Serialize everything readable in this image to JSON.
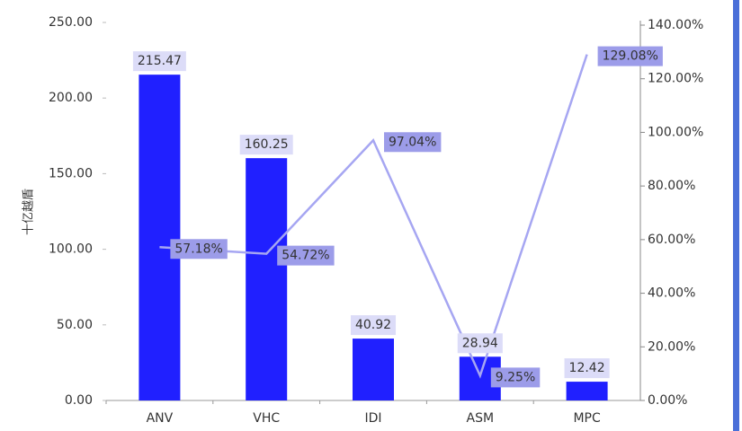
{
  "chart_data": {
    "type": "bar-line",
    "y_label": "十亿越盾",
    "categories": [
      "ANV",
      "VHC",
      "IDI",
      "ASM",
      "MPC"
    ],
    "series": [
      {
        "type": "bar",
        "color": "#2020ff",
        "values": [
          215.47,
          160.25,
          40.92,
          28.94,
          12.42
        ]
      },
      {
        "type": "line",
        "color": "#a6a6f2",
        "axis": "y2",
        "values": [
          57.18,
          54.72,
          97.04,
          9.25,
          129.08
        ],
        "value_labels": [
          "57.18%",
          "54.72%",
          "97.04%",
          "9.25%",
          "129.08%"
        ]
      }
    ],
    "ylim": [
      0,
      250
    ],
    "yticks": [
      {
        "value": 0,
        "label": "0.00"
      },
      {
        "value": 50,
        "label": "50.00"
      },
      {
        "value": 100,
        "label": "100.00"
      },
      {
        "value": 150,
        "label": "150.00"
      },
      {
        "value": 200,
        "label": "200.00"
      },
      {
        "value": 250,
        "label": "250.00"
      }
    ],
    "y2lim": [
      0,
      140
    ],
    "y2ticks": [
      {
        "value": 0,
        "label": "0.00%"
      },
      {
        "value": 20,
        "label": "20.00%"
      },
      {
        "value": 40,
        "label": "40.00%"
      },
      {
        "value": 60,
        "label": "60.00%"
      },
      {
        "value": 80,
        "label": "80.00%"
      },
      {
        "value": 100,
        "label": "100.00%"
      },
      {
        "value": 120,
        "label": "120.00%"
      },
      {
        "value": 140,
        "label": "140.00%"
      }
    ]
  }
}
